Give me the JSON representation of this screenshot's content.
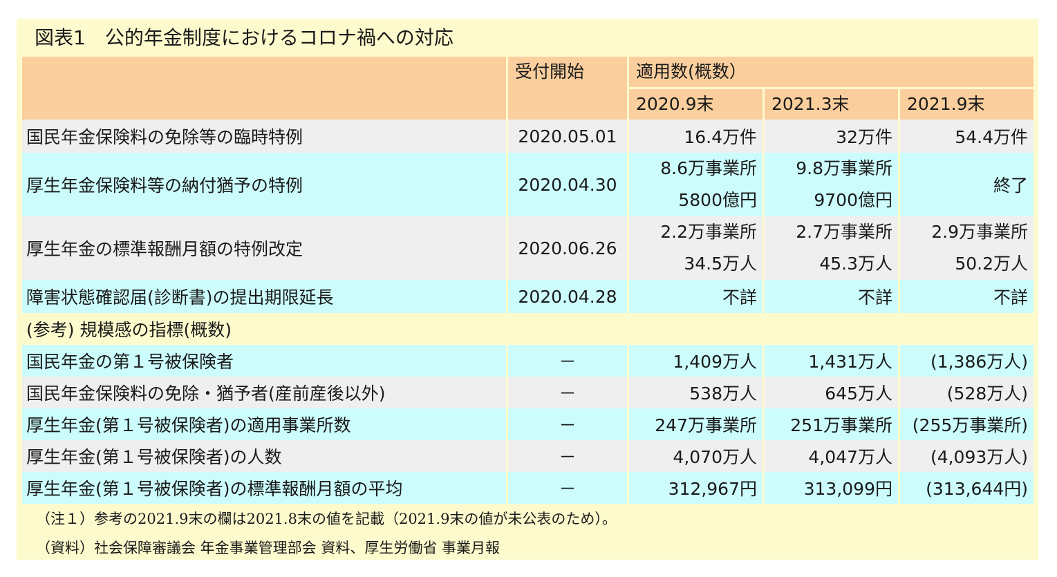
{
  "title": "図表1　公的年金制度におけるコロナ禍への対応",
  "header": {
    "start_label": "受付開始",
    "applied_label": "適用数(概数）",
    "periods": [
      "2020.9末",
      "2021.3末",
      "2021.9末"
    ]
  },
  "rows": [
    {
      "label": "国民年金保険料の免除等の臨時特例",
      "date": "2020.05.01",
      "v1": "16.4万件",
      "v2": "32万件",
      "v3": "54.4万件"
    },
    {
      "label": "厚生年金保険料等の納付猶予の特例",
      "date": "2020.04.30",
      "v1a": "8.6万事業所",
      "v1b": "5800億円",
      "v2a": "9.8万事業所",
      "v2b": "9700億円",
      "v3": "終了"
    },
    {
      "label": "厚生年金の標準報酬月額の特例改定",
      "date": "2020.06.26",
      "v1a": "2.2万事業所",
      "v1b": "34.5万人",
      "v2a": "2.7万事業所",
      "v2b": "45.3万人",
      "v3a": "2.9万事業所",
      "v3b": "50.2万人"
    },
    {
      "label": "障害状態確認届(診断書)の提出期限延長",
      "date": "2020.04.28",
      "v1": "不詳",
      "v2": "不詳",
      "v3": "不詳"
    }
  ],
  "reference_heading": "(参考) 規模感の指標(概数)",
  "reference_rows": [
    {
      "label": "国民年金の第１号被保険者",
      "date": "－",
      "v1": "1,409万人",
      "v2": "1,431万人",
      "v3": "(1,386万人)"
    },
    {
      "label": "国民年金保険料の免除・猶予者(産前産後以外)",
      "date": "－",
      "v1": "538万人",
      "v2": "645万人",
      "v3": "(528万人)"
    },
    {
      "label": "厚生年金(第１号被保険者)の適用事業所数",
      "date": "－",
      "v1": "247万事業所",
      "v2": "251万事業所",
      "v3": "(255万事業所)"
    },
    {
      "label": "厚生年金(第１号被保険者)の人数",
      "date": "－",
      "v1": "4,070万人",
      "v2": "4,047万人",
      "v3": "(4,093万人)"
    },
    {
      "label": "厚生年金(第１号被保険者)の標準報酬月額の平均",
      "date": "－",
      "v1": "312,967円",
      "v2": "313,099円",
      "v3": "(313,644円)"
    }
  ],
  "notes": [
    "（注１）参考の2021.9末の欄は2021.8末の値を記載（2021.9末の値が未公表のため）。",
    "（資料）社会保障審議会 年金事業管理部会 資料、厚生労働省 事業月報"
  ],
  "colors": {
    "frame": "#fdfbcd",
    "header": "#fbcf9d",
    "row_grey": "#efefef",
    "row_cyan": "#ccfcfc"
  }
}
